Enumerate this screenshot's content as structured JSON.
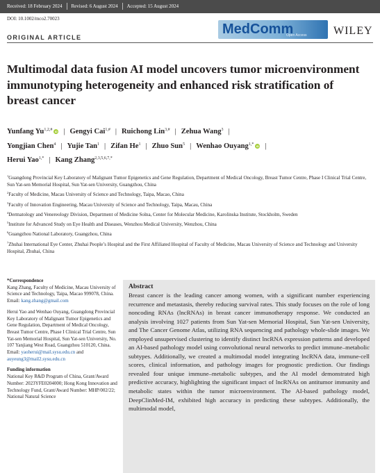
{
  "header": {
    "received": "Received: 18 February 2024",
    "revised": "Revised: 6 August 2024",
    "accepted": "Accepted: 15 August 2024",
    "doi": "DOI: 10.1002/mco2.70023",
    "section": "ORIGINAL ARTICLE"
  },
  "logos": {
    "journal": "MedComm",
    "journal_sub": "Open Access",
    "publisher": "WILEY"
  },
  "title": "Multimodal data fusion AI model uncovers tumor microenvironment immunotyping heterogeneity and enhanced risk stratification of breast cancer",
  "authors": [
    {
      "name": "Yunfang Yu",
      "sup": "1,2,#",
      "orcid": true
    },
    {
      "name": "Gengyi Cai",
      "sup": "1,#",
      "orcid": false
    },
    {
      "name": "Ruichong Lin",
      "sup": "3,#",
      "orcid": false
    },
    {
      "name": "Zehua Wang",
      "sup": "3",
      "orcid": false
    },
    {
      "name": "Yongjian Chen",
      "sup": "4",
      "orcid": false
    },
    {
      "name": "Yujie Tan",
      "sup": "1",
      "orcid": false
    },
    {
      "name": "Zifan He",
      "sup": "1",
      "orcid": false
    },
    {
      "name": "Zhuo Sun",
      "sup": "5",
      "orcid": false
    },
    {
      "name": "Wenhao Ouyang",
      "sup": "1,*",
      "orcid": true
    },
    {
      "name": "Herui Yao",
      "sup": "1,*",
      "orcid": false
    },
    {
      "name": "Kang Zhang",
      "sup": "2,3,5,6,7,*",
      "orcid": false
    }
  ],
  "affiliations": [
    {
      "num": "1",
      "text": "Guangdong Provincial Key Laboratory of Malignant Tumor Epigenetics and Gene Regulation, Department of Medical Oncology, Breast Tumor Centre, Phase I Clinical Trial Centre, Sun Yat-sen Memorial Hospital, Sun Yat-sen University, Guangzhou, China"
    },
    {
      "num": "2",
      "text": "Faculty of Medicine, Macau University of Science and Technology, Taipa, Macao, China"
    },
    {
      "num": "3",
      "text": "Faculty of Innovation Engineering, Macau University of Science and Technology, Taipa, Macau, China"
    },
    {
      "num": "4",
      "text": "Dermatology and Venereology Division, Department of Medicine Solna, Center for Molecular Medicine, Karolinska Institute, Stockholm, Sweden"
    },
    {
      "num": "5",
      "text": "Institute for Advanced Study on Eye Health and Diseases, Wenzhou Medical University, Wenzhou, China"
    },
    {
      "num": "6",
      "text": "Guangzhou National Laboratory, Guangzhou, China"
    },
    {
      "num": "7",
      "text": "Zhuhai International Eye Center, Zhuhai People’s Hospital and the First Affiliated Hospital of Faculty of Medicine, Macau University of Science and Technology and University Hospital, Zhuhai, China"
    }
  ],
  "correspondence": {
    "heading": "*Correspondence",
    "block1": "Kang Zhang, Faculty of Medicine, Macau University of Science and Technology, Taipa, Macao 999078, China.",
    "email1_label": "Email: ",
    "email1": "kang.zhang@gmail.com",
    "block2": "Herui Yao and Wenhao Ouyang, Guangdong Provincial Key Laboratory of Malignant Tumor Epigenetics and Gene Regulation, Department of Medical Oncology, Breast Tumor Centre, Phase I Clinical Trial Centre, Sun Yat-sen Memorial Hospital, Sun Yat-sen University, No. 107 Yanjiang West Road, Guangzhou 510120, China.",
    "email2_label": "Email: ",
    "email2a": "yaoherui@mail.sysu.edu.cn",
    "email2_and": " and ",
    "email2b": "auyeung3@mail2.sysu.edu.cn"
  },
  "funding": {
    "heading": "Funding information",
    "text": "National Key R&D Program of China, Grant/Award Number: 2023YFE0204000; Hong Kong Innovation and Technology Fund, Grant/Award Number: MHP/002/22; National Natural Science"
  },
  "abstract": {
    "heading": "Abstract",
    "text": "Breast cancer is the leading cancer among women, with a significant number experiencing recurrence and metastasis, thereby reducing survival rates. This study focuses on the role of long noncoding RNAs (lncRNAs) in breast cancer immunotherapy response. We conducted an analysis involving 1027 patients from Sun Yat-sen Memorial Hospital, Sun Yat-sen University, and The Cancer Genome Atlas, utilizing RNA sequencing and pathology whole-slide images. We employed unsupervised clustering to identify distinct lncRNA expression patterns and developed an AI-based pathology model using convolutional neural networks to predict immune–metabolic subtypes. Additionally, we created a multimodal model integrating lncRNA data, immune-cell scores, clinical information, and pathology images for prognostic prediction. Our findings revealed four unique immune–metabolic subtypes, and the AI model demonstrated high predictive accuracy, highlighting the significant impact of lncRNAs on antitumor immunity and metabolic states within the tumor microenvironment. The AI-based pathology model, DeepClinMed-IM, exhibited high accuracy in predicting these subtypes. Additionally, the multimodal model,"
  }
}
